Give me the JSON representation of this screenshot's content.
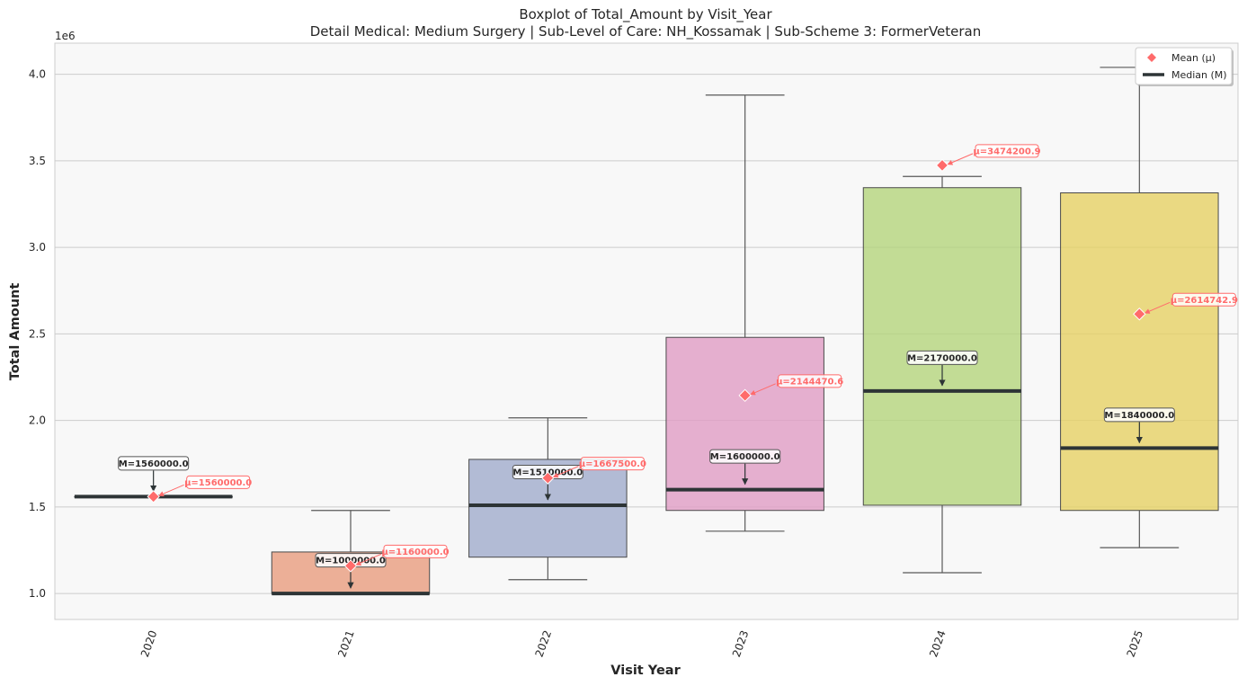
{
  "chart_data": {
    "type": "boxplot",
    "title": "Boxplot of Total_Amount by Visit_Year",
    "subtitle": "Detail Medical: Medium Surgery | Sub-Level of Care: NH_Kossamak | Sub-Scheme 3: FormerVeteran",
    "xlabel": "Visit Year",
    "ylabel": "Total Amount",
    "y_offset_label": "1e6",
    "ylim": [
      850000,
      4180000
    ],
    "yticks": [
      1000000,
      1500000,
      2000000,
      2500000,
      3000000,
      3500000,
      4000000
    ],
    "ytick_labels": [
      "1.0",
      "1.5",
      "2.0",
      "2.5",
      "3.0",
      "3.5",
      "4.0"
    ],
    "grid": true,
    "legend_position": "top-right",
    "legend": [
      {
        "label": "Mean (μ)",
        "marker": "diamond",
        "color": "#ff6b6b"
      },
      {
        "label": "Median (M)",
        "marker": "line",
        "color": "#2d3436"
      }
    ],
    "colors": {
      "mean": "#ff6b6b",
      "median": "#2d3436",
      "whisker": "#595959",
      "plot_bg": "#f8f8f8",
      "grid": "#cccccc"
    },
    "categories": [
      "2020",
      "2021",
      "2022",
      "2023",
      "2024",
      "2025"
    ],
    "boxes": [
      {
        "category": "2020",
        "whisker_low": 1560000,
        "q1": 1560000,
        "median": 1560000,
        "q3": 1560000,
        "whisker_high": 1560000,
        "mean": 1560000,
        "color": "#b0b0b0",
        "median_label": "M=1560000.0",
        "mean_label": "μ=1560000.0"
      },
      {
        "category": "2021",
        "whisker_low": 1000000,
        "q1": 1000000,
        "median": 1000000,
        "q3": 1240000,
        "whisker_high": 1480000,
        "mean": 1160000,
        "color": "#e99c7e",
        "median_label": "M=1000000.0",
        "mean_label": "μ=1160000.0"
      },
      {
        "category": "2022",
        "whisker_low": 1080000,
        "q1": 1210000,
        "median": 1510000,
        "q3": 1775000,
        "whisker_high": 2015000,
        "mean": 1667500,
        "color": "#a0abcc",
        "median_label": "M=1510000.0",
        "mean_label": "μ=1667500.0"
      },
      {
        "category": "2023",
        "whisker_low": 1360000,
        "q1": 1480000,
        "median": 1600000,
        "q3": 2480000,
        "whisker_high": 3880000,
        "mean": 2144470.6,
        "color": "#e09cc4",
        "median_label": "M=1600000.0",
        "mean_label": "μ=2144470.6"
      },
      {
        "category": "2024",
        "whisker_low": 1120000,
        "q1": 1510000,
        "median": 2170000,
        "q3": 3345000,
        "whisker_high": 3410000,
        "mean": 3474200.9,
        "color": "#b4d47c",
        "median_label": "M=2170000.0",
        "mean_label": "μ=3474200.9"
      },
      {
        "category": "2025",
        "whisker_low": 1265000,
        "q1": 1480000,
        "median": 1840000,
        "q3": 3315000,
        "whisker_high": 4040000,
        "mean": 2614742.9,
        "color": "#e6d164",
        "median_label": "M=1840000.0",
        "mean_label": "μ=2614742.9"
      }
    ]
  }
}
